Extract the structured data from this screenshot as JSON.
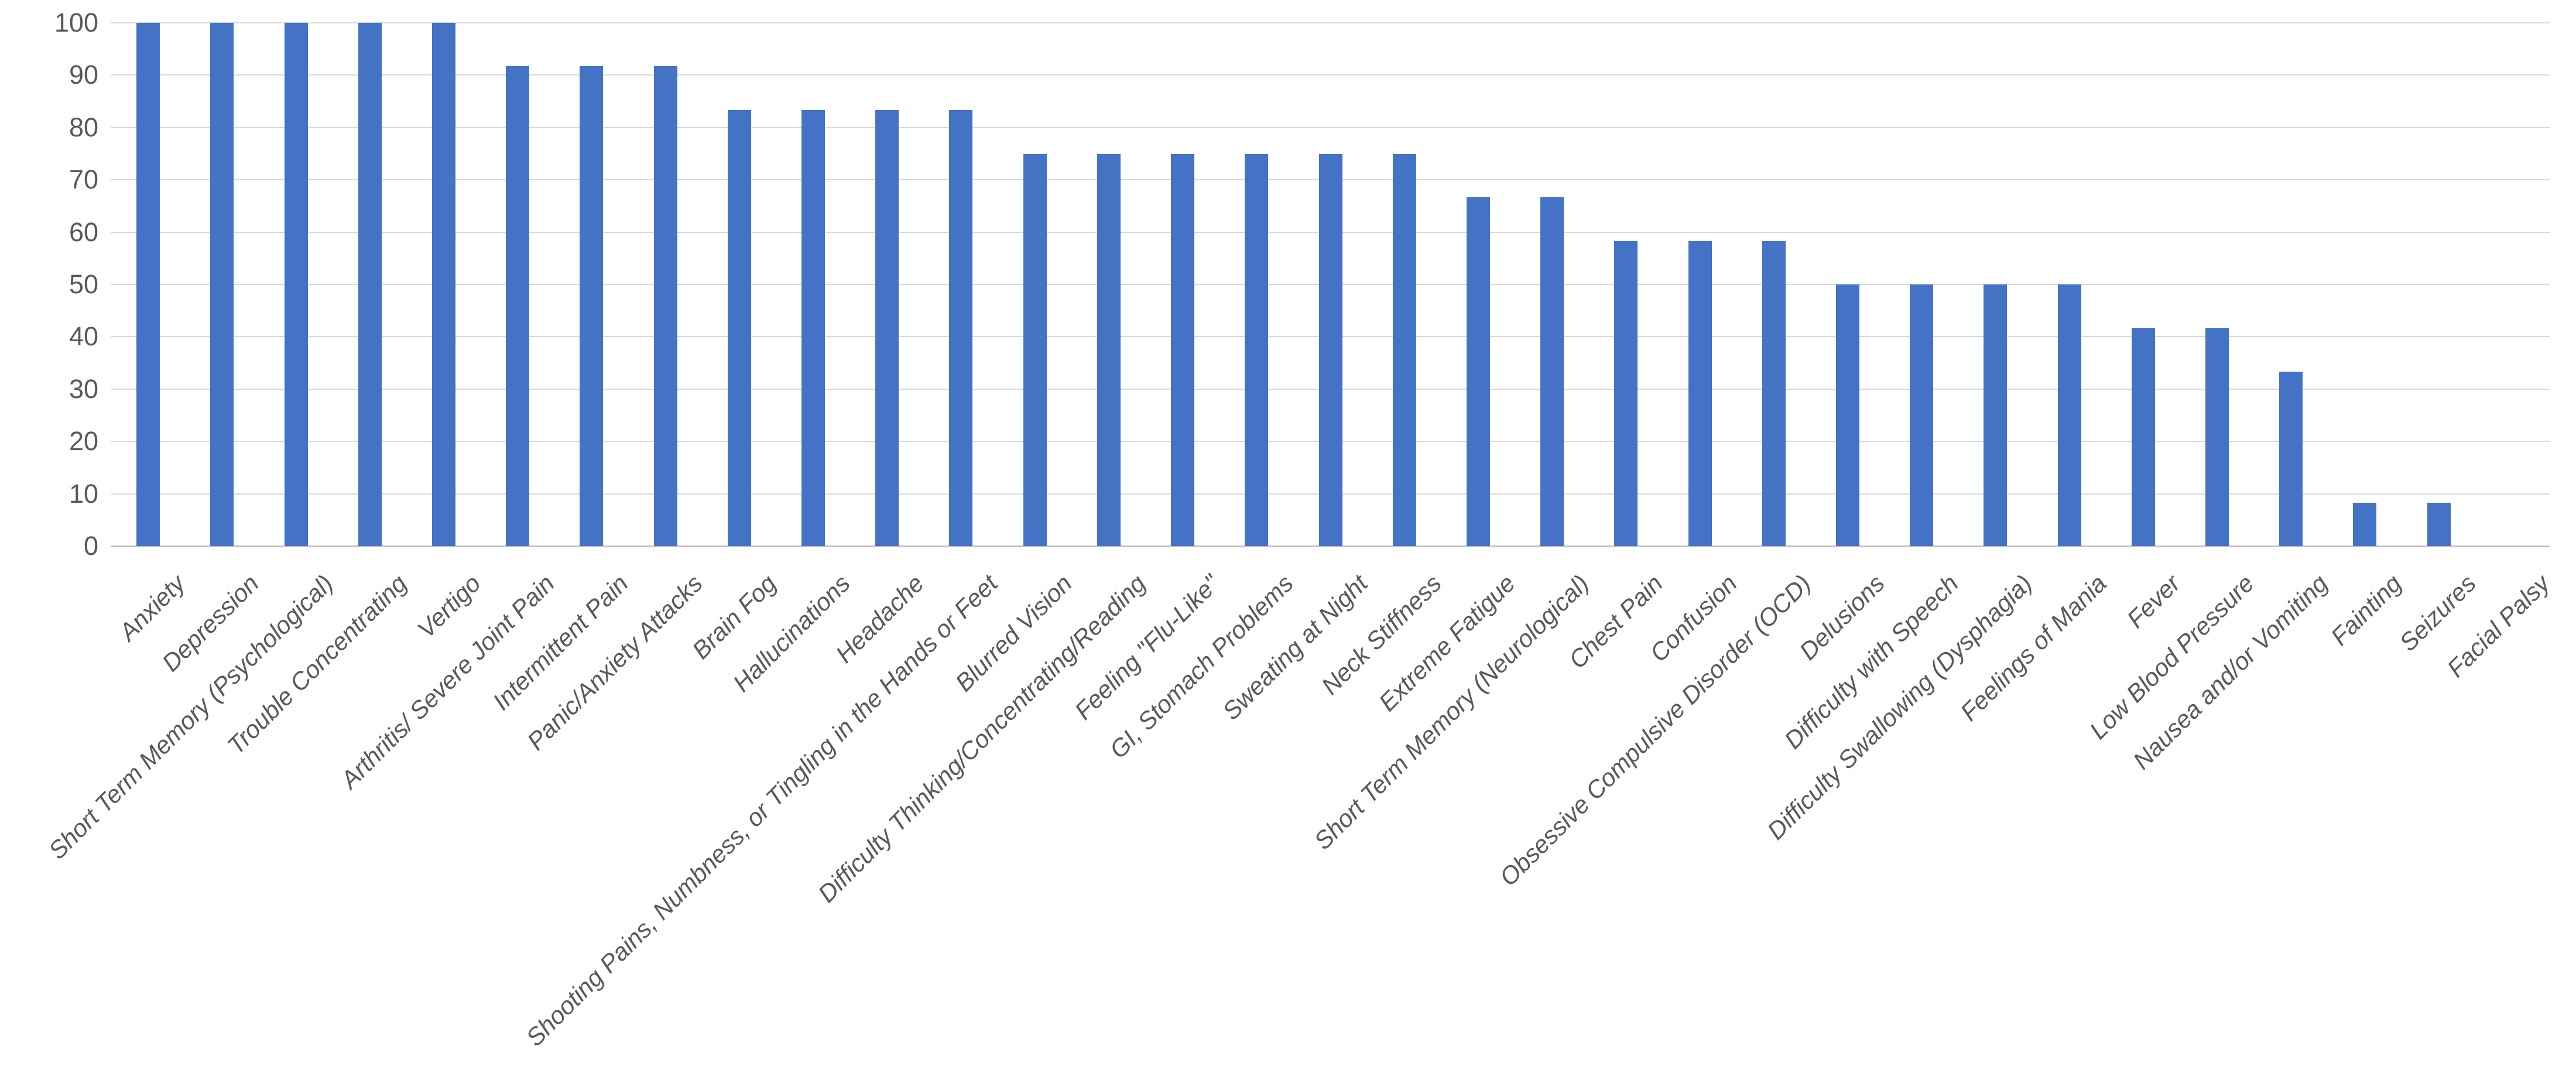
{
  "chart_data": {
    "type": "bar",
    "title": "",
    "xlabel": "",
    "ylabel": "",
    "categories": [
      "Anxiety",
      "Depression",
      "Short Term Memory (Psychological)",
      "Trouble Concentrating",
      "Vertigo",
      "Arthritis/ Severe Joint Pain",
      "Intermittent Pain",
      "Panic/Anxiety Attacks",
      "Brain Fog",
      "Hallucinations",
      "Headache",
      "Shooting Pains, Numbness, or Tingling in the Hands or Feet",
      "Blurred Vision",
      "Difficulty Thinking/Concentrating/Reading",
      "Feeling \"Flu-Like\"",
      "GI, Stomach Problems",
      "Sweating at Night",
      "Neck Stiffness",
      "Extreme Fatigue",
      "Short Term Memory (Neurological)",
      "Chest Pain",
      "Confusion",
      "Obsessive Compulsive Disorder (OCD)",
      "Delusions",
      "Difficulty with Speech",
      "Difficulty Swallowing (Dysphagia)",
      "Feelings of Mania",
      "Fever",
      "Low Blood Pressure",
      "Nausea and/or Vomiting",
      "Fainting",
      "Seizures",
      "Facial Palsy"
    ],
    "values": [
      100,
      100,
      100,
      100,
      100,
      91.7,
      91.7,
      91.7,
      83.3,
      83.3,
      83.3,
      83.3,
      75,
      75,
      75,
      75,
      75,
      75,
      66.7,
      66.7,
      58.3,
      58.3,
      58.3,
      50,
      50,
      50,
      50,
      41.7,
      41.7,
      33.3,
      8.3,
      8.3,
      0
    ],
    "ylim": [
      0,
      100
    ],
    "yticks": [
      0,
      10,
      20,
      30,
      40,
      50,
      60,
      70,
      80,
      90,
      100
    ],
    "grid": true,
    "legend_position": "none",
    "colors": {
      "bar": "#4472C4",
      "gridline": "#D9D9D9",
      "axis_line": "#BFBFBF",
      "tick_text": "#595959",
      "background": "#FFFFFF"
    }
  }
}
